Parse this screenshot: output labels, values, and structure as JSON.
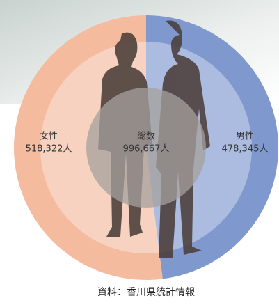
{
  "chart_data": {
    "type": "pie",
    "categories": [
      "女性",
      "男性"
    ],
    "values": [
      518322,
      478345
    ],
    "value_labels": [
      "518,322人",
      "478,345人"
    ],
    "colors": [
      "#f5bb9e",
      "#7f99cf"
    ],
    "center_label": "総数",
    "center_value": 996667,
    "center_value_label": "996,667人",
    "source": "資料：香川県統計情報"
  }
}
